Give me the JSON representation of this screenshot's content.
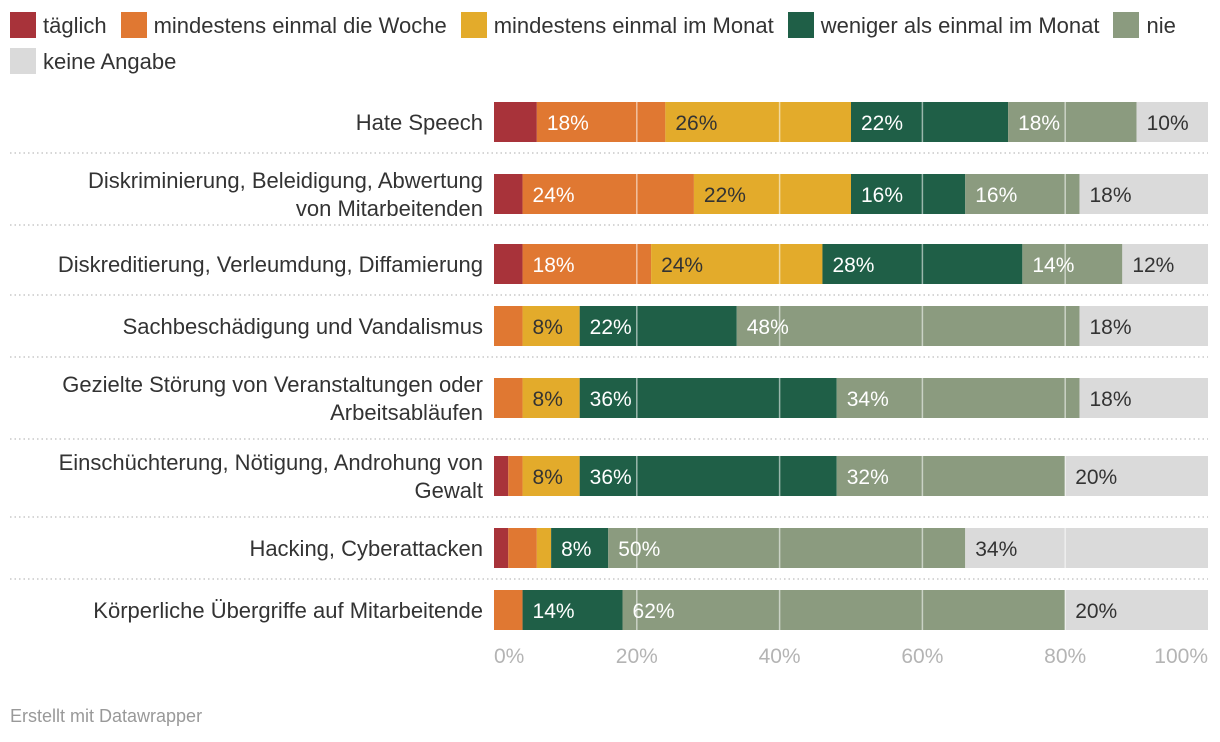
{
  "chart_data": {
    "type": "stacked-bar-horizontal",
    "legend": [
      {
        "name": "täglich",
        "color": "#a8333a"
      },
      {
        "name": "mindestens einmal die Woche",
        "color": "#e07832"
      },
      {
        "name": "mindestens einmal im Monat",
        "color": "#e3ab2b"
      },
      {
        "name": "weniger als einmal im Monat",
        "color": "#1f5f47"
      },
      {
        "name": "nie",
        "color": "#8b9b7f"
      },
      {
        "name": "keine Angabe",
        "color": "#dadada"
      }
    ],
    "label_colors": [
      "#ffffff",
      "#ffffff",
      "#333333",
      "#ffffff",
      "#ffffff",
      "#333333"
    ],
    "categories": [
      {
        "label": [
          "Hate Speech"
        ],
        "values": [
          6,
          18,
          26,
          22,
          18,
          10
        ]
      },
      {
        "label": [
          "Diskriminierung, Beleidigung, Abwertung",
          "von Mitarbeitenden"
        ],
        "values": [
          4,
          24,
          22,
          16,
          16,
          18
        ]
      },
      {
        "label": [
          "Diskreditierung, Verleumdung, Diffamierung"
        ],
        "values": [
          4,
          18,
          24,
          28,
          14,
          12
        ]
      },
      {
        "label": [
          "Sachbeschädigung und Vandalismus"
        ],
        "values": [
          0,
          4,
          8,
          22,
          48,
          18
        ]
      },
      {
        "label": [
          "Gezielte Störung von Veranstaltungen oder",
          "Arbeitsabläufen"
        ],
        "values": [
          0,
          4,
          8,
          36,
          34,
          18
        ]
      },
      {
        "label": [
          "Einschüchterung, Nötigung, Androhung von",
          "Gewalt"
        ],
        "values": [
          2,
          2,
          8,
          36,
          32,
          20
        ]
      },
      {
        "label": [
          "Hacking, Cyberattacken"
        ],
        "values": [
          2,
          4,
          2,
          8,
          50,
          34
        ]
      },
      {
        "label": [
          "Körperliche Übergriffe auf Mitarbeitende"
        ],
        "values": [
          0,
          4,
          0,
          14,
          62,
          20
        ]
      }
    ],
    "value_suffix": "%",
    "label_min_value": 8,
    "x_ticks": [
      "0%",
      "20%",
      "40%",
      "60%",
      "80%",
      "100%"
    ],
    "xlim": [
      0,
      100
    ]
  },
  "footer": "Erstellt mit Datawrapper"
}
